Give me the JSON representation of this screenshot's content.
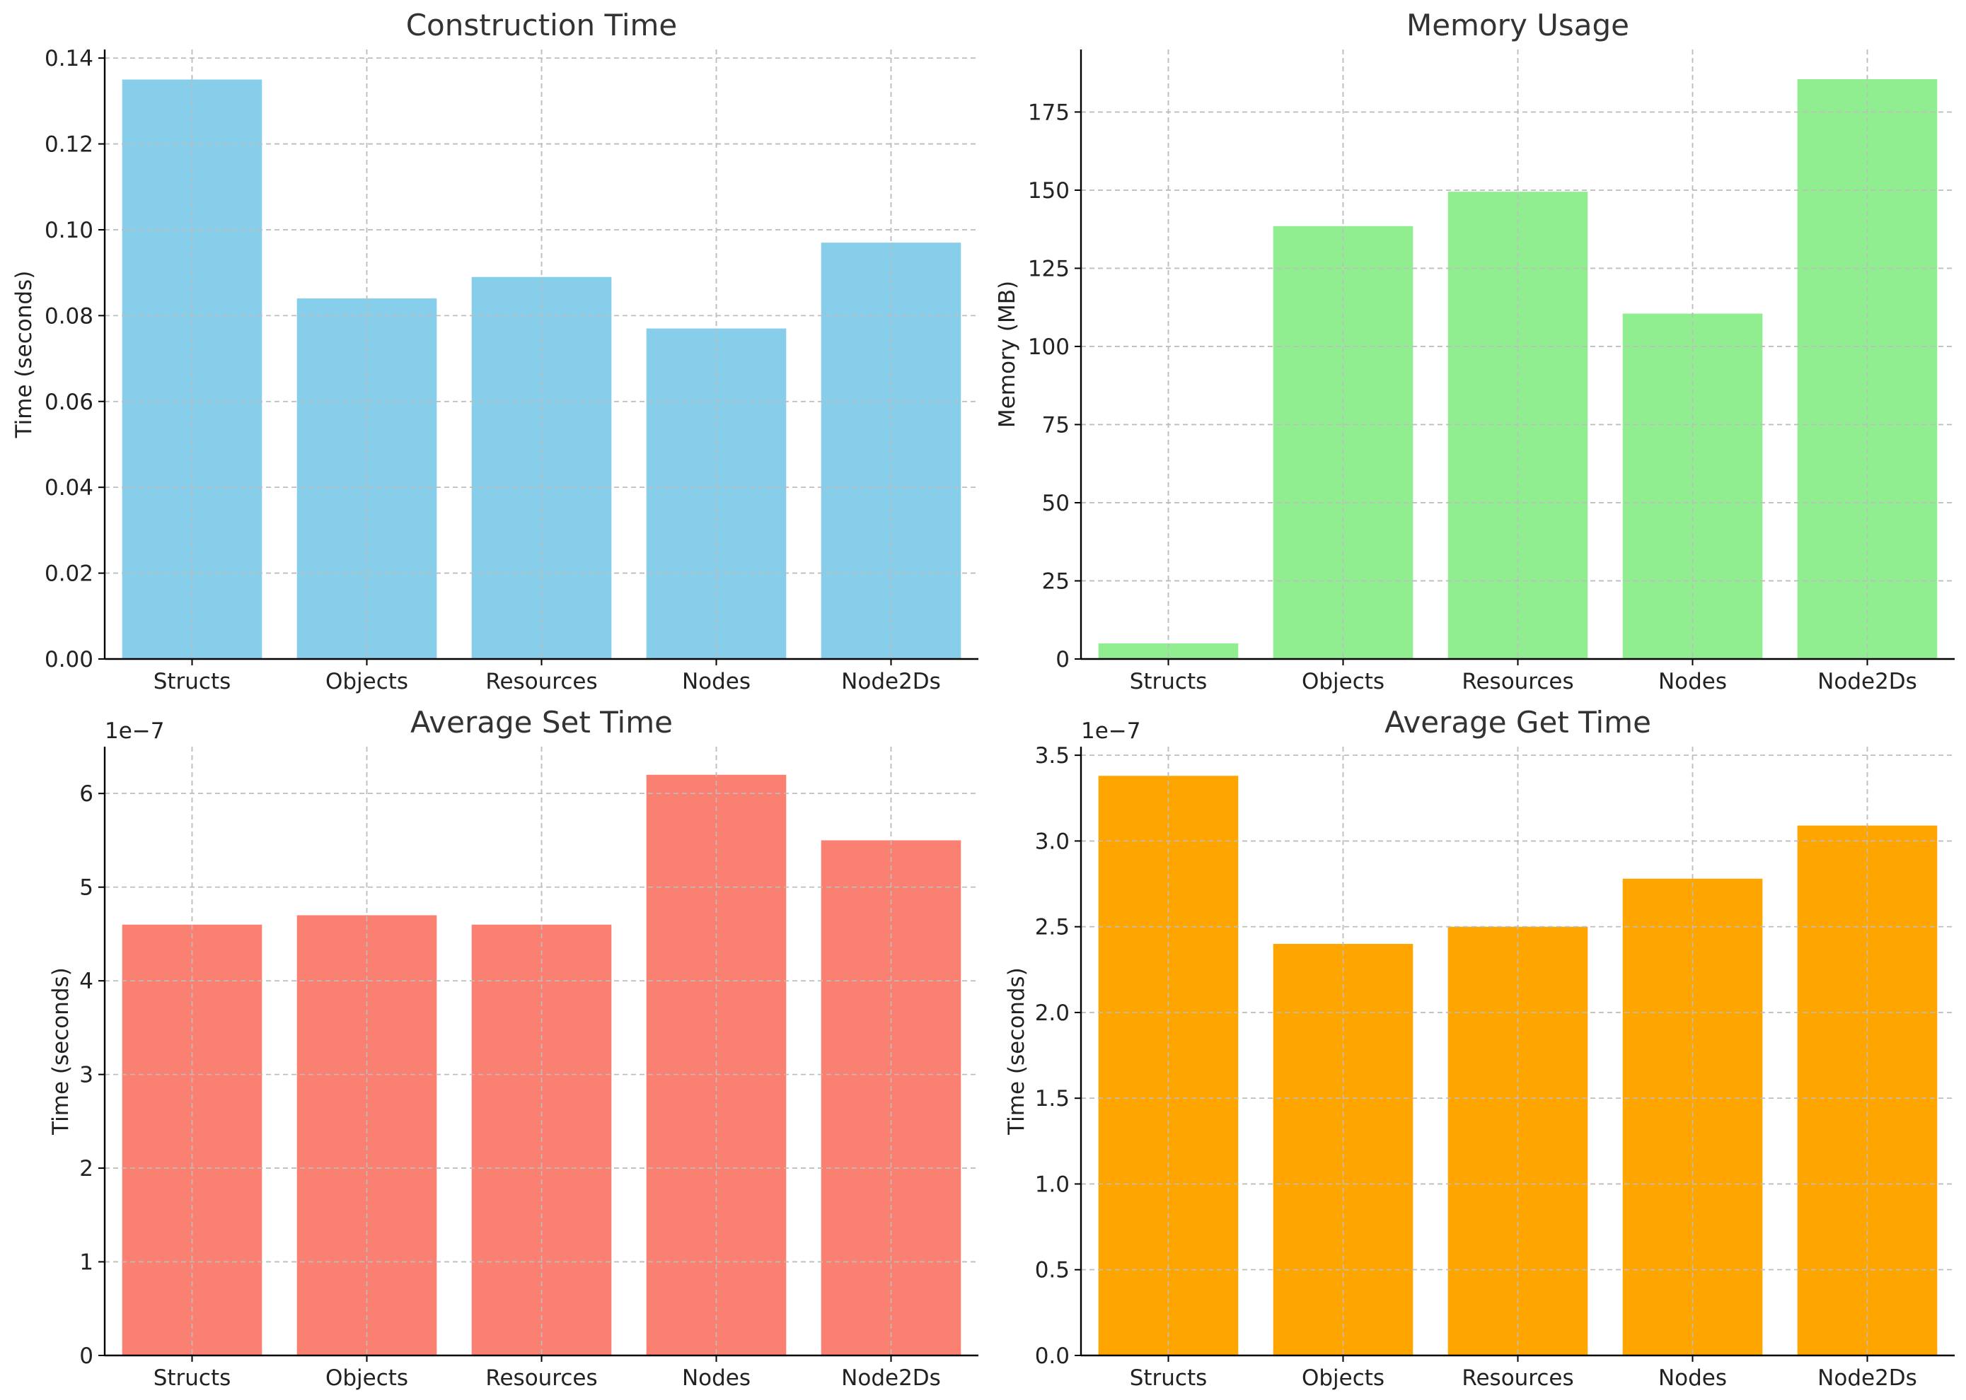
{
  "chart_data": [
    {
      "type": "bar",
      "title": "Construction Time",
      "categories": [
        "Structs",
        "Objects",
        "Resources",
        "Nodes",
        "Node2Ds"
      ],
      "values": [
        0.135,
        0.084,
        0.089,
        0.077,
        0.097
      ],
      "ylabel": "Time (seconds)",
      "xlabel": "",
      "ylim": [
        0,
        0.142
      ],
      "yticks": [
        0.0,
        0.02,
        0.04,
        0.06,
        0.08,
        0.1,
        0.12,
        0.14
      ],
      "ytick_labels": [
        "0.00",
        "0.02",
        "0.04",
        "0.06",
        "0.08",
        "0.10",
        "0.12",
        "0.14"
      ],
      "offset_text": "",
      "color": "#87CEEB",
      "grid": true
    },
    {
      "type": "bar",
      "title": "Memory Usage",
      "categories": [
        "Structs",
        "Objects",
        "Resources",
        "Nodes",
        "Node2Ds"
      ],
      "values": [
        5,
        138.5,
        149.5,
        110.5,
        185.5
      ],
      "ylabel": "Memory (MB)",
      "xlabel": "",
      "ylim": [
        0,
        195
      ],
      "yticks": [
        0,
        25,
        50,
        75,
        100,
        125,
        150,
        175
      ],
      "ytick_labels": [
        "0",
        "25",
        "50",
        "75",
        "100",
        "125",
        "150",
        "175"
      ],
      "offset_text": "",
      "color": "#90EE90",
      "grid": true
    },
    {
      "type": "bar",
      "title": "Average Set Time",
      "categories": [
        "Structs",
        "Objects",
        "Resources",
        "Nodes",
        "Node2Ds"
      ],
      "values": [
        4.6e-07,
        4.7e-07,
        4.6e-07,
        6.2e-07,
        5.5e-07
      ],
      "ylabel": "Time (seconds)",
      "xlabel": "",
      "ylim": [
        0,
        6.5e-07
      ],
      "yticks": [
        0,
        1e-07,
        2e-07,
        3e-07,
        4e-07,
        5e-07,
        6e-07
      ],
      "ytick_labels": [
        "0",
        "1",
        "2",
        "3",
        "4",
        "5",
        "6"
      ],
      "offset_text": "1e−7",
      "color": "#FA8072",
      "grid": true
    },
    {
      "type": "bar",
      "title": "Average Get Time",
      "categories": [
        "Structs",
        "Objects",
        "Resources",
        "Nodes",
        "Node2Ds"
      ],
      "values": [
        3.38e-07,
        2.4e-07,
        2.5e-07,
        2.78e-07,
        3.09e-07
      ],
      "ylabel": "Time (seconds)",
      "xlabel": "",
      "ylim": [
        0,
        3.55e-07
      ],
      "yticks": [
        0,
        5e-08,
        1e-07,
        1.5e-07,
        2e-07,
        2.5e-07,
        3e-07,
        3.5e-07
      ],
      "ytick_labels": [
        "0.0",
        "0.5",
        "1.0",
        "1.5",
        "2.0",
        "2.5",
        "3.0",
        "3.5"
      ],
      "offset_text": "1e−7",
      "color": "#FFA500",
      "grid": true
    }
  ]
}
